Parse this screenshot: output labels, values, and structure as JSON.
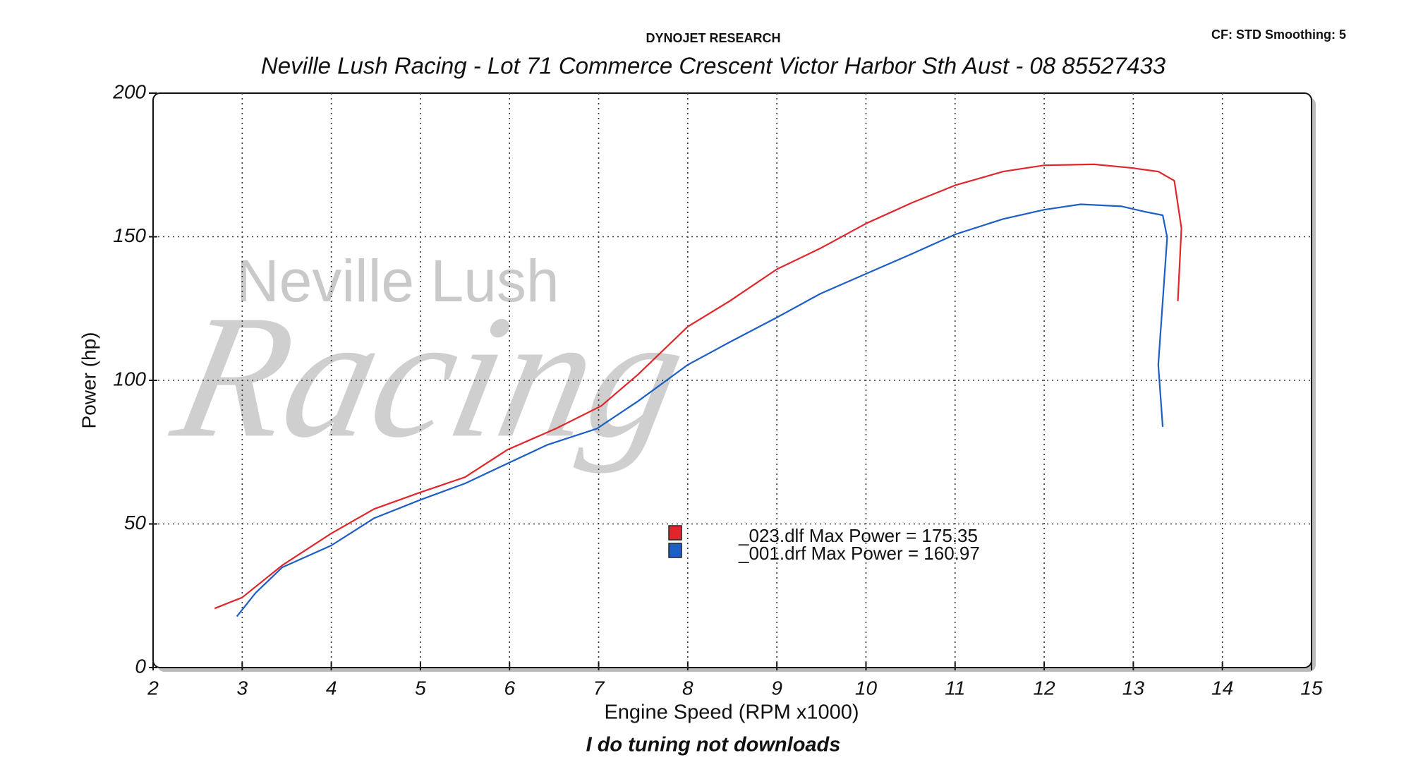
{
  "chart_data": {
    "type": "line",
    "header": "DYNOJET RESEARCH",
    "settings_label": "CF: STD  Smoothing: 5",
    "title": "Neville Lush Racing  - Lot 71 Commerce Crescent  Victor Harbor Sth Aust  - 08 85527433",
    "watermark": [
      "Neville Lush",
      "Racing"
    ],
    "x_label": "Engine Speed (RPM x1000)",
    "y_label": "Power (hp)",
    "footer": "I do tuning not downloads",
    "xlim": [
      2,
      15
    ],
    "xticks": [
      2,
      3,
      4,
      5,
      6,
      7,
      8,
      9,
      10,
      11,
      12,
      13,
      14,
      15
    ],
    "ylim": [
      0,
      200
    ],
    "yticks": [
      0,
      50,
      100,
      150,
      200
    ],
    "grid": true,
    "series": [
      {
        "name": "_023.dlf Max Power = 175.35",
        "color": "#e0262b",
        "x": [
          2.69,
          3.0,
          3.45,
          4.0,
          4.48,
          5.0,
          5.5,
          5.98,
          6.52,
          7.03,
          7.44,
          8.0,
          8.47,
          9.0,
          9.49,
          10.0,
          10.52,
          11.0,
          11.54,
          12.0,
          12.56,
          12.97,
          13.28,
          13.46,
          13.54,
          13.5
        ],
        "values": [
          20.6,
          24.4,
          35.6,
          46.7,
          55.2,
          61,
          66.3,
          75.9,
          83.2,
          91.1,
          102,
          118.7,
          127.6,
          138.7,
          146,
          154.6,
          161.9,
          167.9,
          172.7,
          174.9,
          175.2,
          174,
          172.7,
          169.5,
          153,
          127.6
        ]
      },
      {
        "name": "_001.drf Max Power = 160.97",
        "color": "#1d5fc4",
        "x": [
          2.94,
          3.15,
          3.45,
          4.0,
          4.48,
          5.0,
          5.5,
          5.98,
          6.42,
          6.98,
          7.44,
          8.0,
          8.47,
          9.0,
          9.49,
          10.0,
          10.52,
          11.0,
          11.54,
          12.0,
          12.41,
          12.87,
          13.13,
          13.33,
          13.38,
          13.28,
          13.33
        ],
        "values": [
          17.8,
          26,
          34.9,
          42.5,
          52,
          58.4,
          64.1,
          71.1,
          77.5,
          83.2,
          92.7,
          105.4,
          113.3,
          121.9,
          130.2,
          137.1,
          144.1,
          150.8,
          156.2,
          159.4,
          161.3,
          160.6,
          158.7,
          157.5,
          149.8,
          105.4,
          83.8
        ]
      }
    ]
  }
}
